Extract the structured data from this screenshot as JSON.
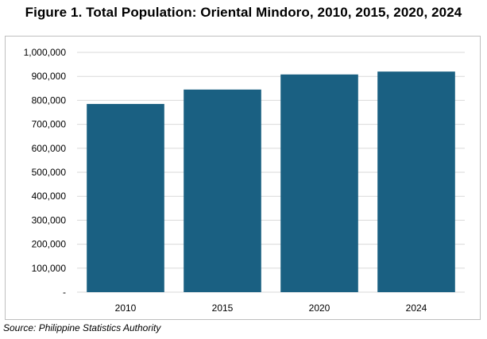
{
  "figure": {
    "title": "Figure 1. Total Population: Oriental Mindoro, 2010, 2015, 2020, 2024",
    "source": "Source: Philippine Statistics Authority"
  },
  "chart_data": {
    "type": "bar",
    "title": "",
    "xlabel": "",
    "ylabel": "",
    "categories": [
      "2010",
      "2015",
      "2020",
      "2024"
    ],
    "values": [
      785000,
      845000,
      908000,
      920000
    ],
    "ylim": [
      0,
      1000000
    ],
    "y_ticks": [
      0,
      100000,
      200000,
      300000,
      400000,
      500000,
      600000,
      700000,
      800000,
      900000,
      1000000
    ],
    "y_tick_labels": [
      "-",
      "100,000",
      "200,000",
      "300,000",
      "400,000",
      "500,000",
      "600,000",
      "700,000",
      "800,000",
      "900,000",
      "1,000,000"
    ],
    "grid": true,
    "legend": "none",
    "bar_color": "#1a6082",
    "grid_color": "#d9d9d9"
  }
}
